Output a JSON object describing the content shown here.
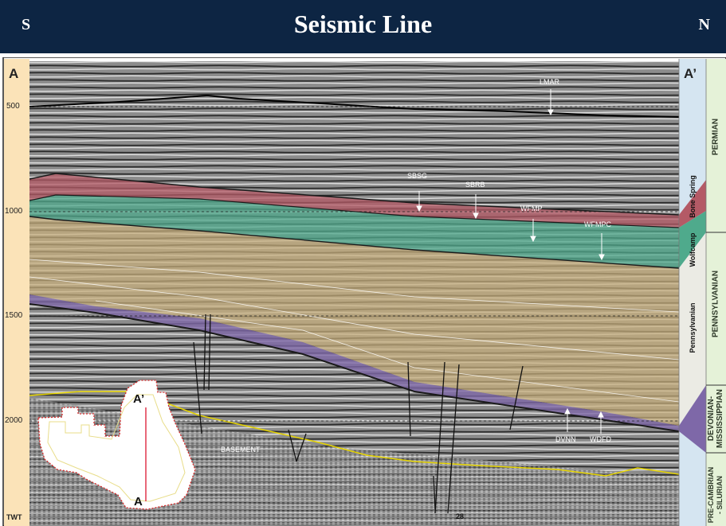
{
  "header": {
    "title": "Seismic Line",
    "left_letter": "S",
    "right_letter": "N",
    "background": "#0d2543"
  },
  "section": {
    "corner_left": "A",
    "corner_right": "A’",
    "twt_ticks": [
      "500",
      "1000",
      "1500",
      "2000"
    ],
    "twt_label": "TWT",
    "shot_label": "28"
  },
  "horizons": {
    "lmar": "LMAR",
    "sbsg": "SBSG",
    "sbrb": "SBRB",
    "wfmp": "WFMP",
    "wfmpc": "WFMPC",
    "dvnn": "DVNN",
    "wdfd": "WDFD",
    "basement": "BASEMENT"
  },
  "formation_column": {
    "bone_spring": "Bone Spring",
    "wolfcamp": "Wolfcamp",
    "pennsylvanian": "Pennsylvanian"
  },
  "period_column": {
    "permian": "PERMIAN",
    "pennsylvanian": "PENNSYLVANIAN",
    "devonian": "DEVONIAN-",
    "mississippian": "MISSISSIPPIAN",
    "precambrian": "PRE-CAMBRIAN",
    "silurian": "- SILURIAN"
  },
  "inset_map": {
    "top_label": "A’",
    "bottom_label": "A"
  },
  "colors": {
    "bone_spring_fill": "#b45a66",
    "wolfcamp_fill": "#4faa8c",
    "pennsylvanian_fill": "#c7ae7c",
    "devonian_fill": "#7e68a8",
    "scale_bar": "#fbe3b8",
    "period_bar": "#e5f2d8",
    "formation_bar": "#d5e5f1",
    "basement_line": "#e6d400"
  }
}
